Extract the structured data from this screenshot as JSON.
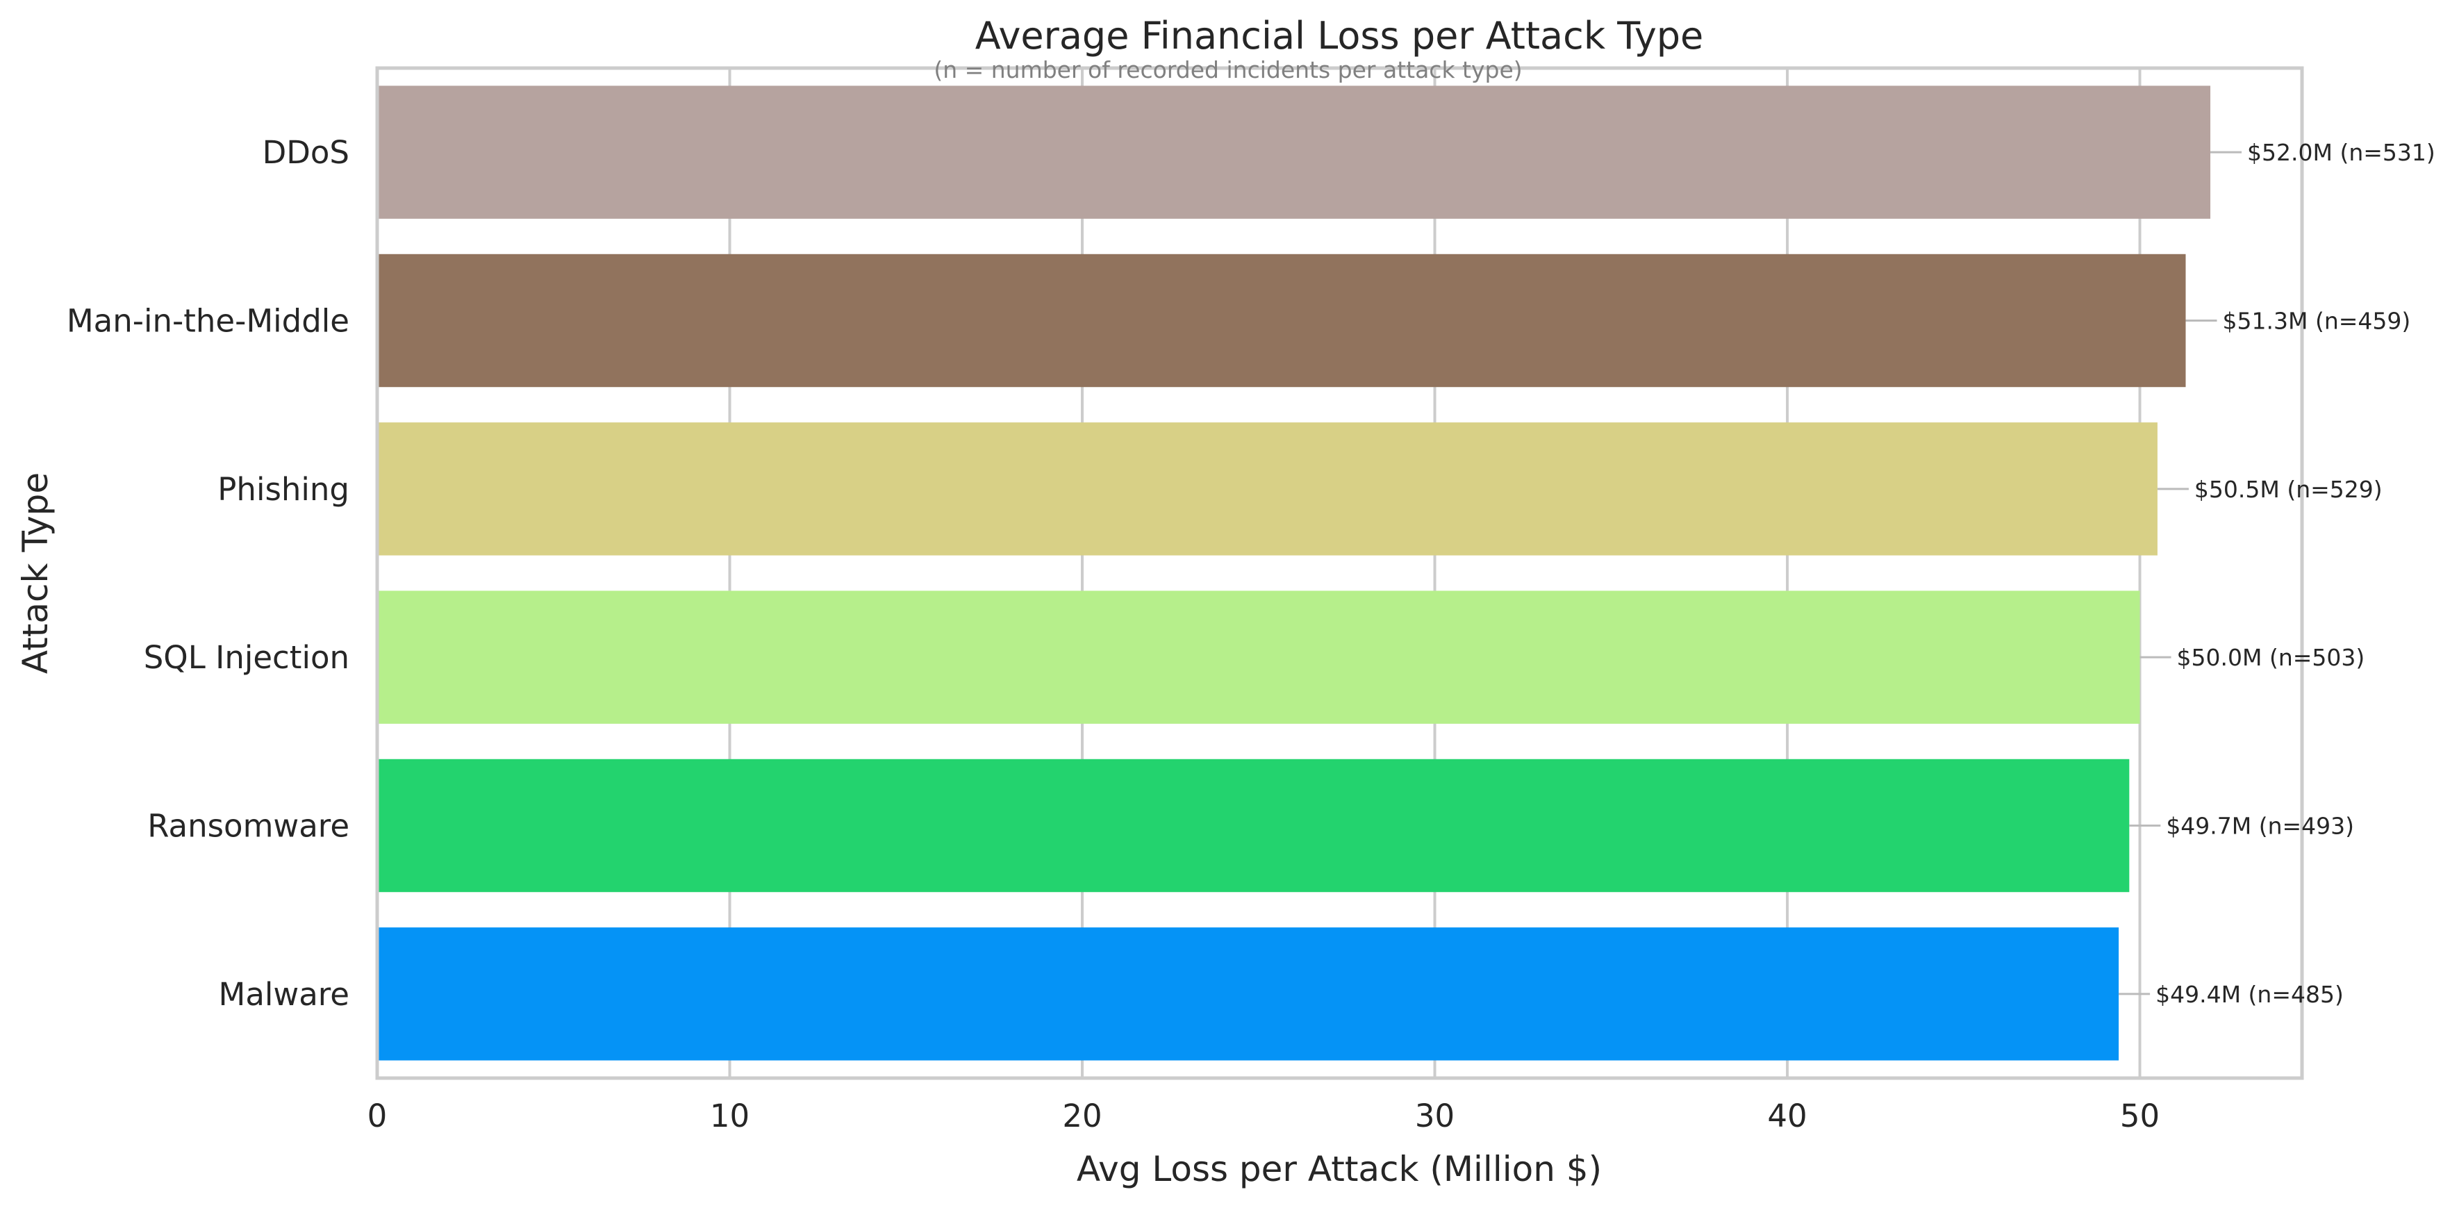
{
  "chart_data": {
    "type": "bar",
    "orientation": "horizontal",
    "title": "Average Financial Loss per Attack Type",
    "subtitle": "(n = number of recorded incidents per attack type)",
    "xlabel": "Avg Loss per Attack (Million $)",
    "ylabel": "Attack Type",
    "xlim": [
      0,
      54.6
    ],
    "xticks": [
      0,
      10,
      20,
      30,
      40,
      50
    ],
    "grid": true,
    "categories": [
      "Malware",
      "Ransomware",
      "SQL Injection",
      "Phishing",
      "Man-in-the-Middle",
      "DDoS"
    ],
    "values": [
      49.4,
      49.7,
      50.0,
      50.5,
      51.3,
      52.0
    ],
    "counts": [
      485,
      493,
      503,
      529,
      459,
      531
    ],
    "data_labels": [
      "$49.4M  (n=485)",
      "$49.7M  (n=493)",
      "$50.0M  (n=503)",
      "$50.5M  (n=529)",
      "$51.3M  (n=459)",
      "$52.0M  (n=531)"
    ],
    "colors": [
      "#0593f6",
      "#23d36e",
      "#b6ef8b",
      "#d8d086",
      "#91735d",
      "#b6a39f"
    ]
  }
}
